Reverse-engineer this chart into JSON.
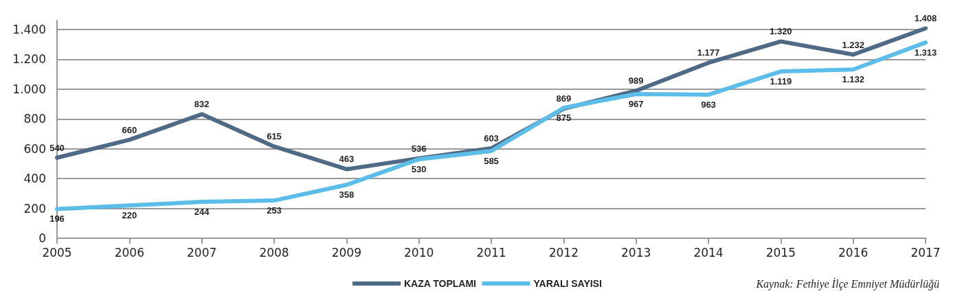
{
  "chart_data": {
    "type": "line",
    "categories": [
      "2005",
      "2006",
      "2007",
      "2008",
      "2009",
      "2010",
      "2011",
      "2012",
      "2013",
      "2014",
      "2015",
      "2016",
      "2017"
    ],
    "series": [
      {
        "name": "KAZA TOPLAMI",
        "color": "#4f6a84",
        "values": [
          540,
          660,
          832,
          615,
          463,
          536,
          603,
          869,
          989,
          1177,
          1320,
          1232,
          1408
        ],
        "value_labels": [
          "540",
          "660",
          "832",
          "615",
          "463",
          "536",
          "603",
          "869",
          "989",
          "1.177",
          "1.320",
          "1.232",
          "1.408"
        ]
      },
      {
        "name": "YARALI SAYISI",
        "color": "#5bbde8",
        "values": [
          196,
          220,
          244,
          253,
          358,
          530,
          585,
          875,
          967,
          963,
          1119,
          1132,
          1313
        ],
        "value_labels": [
          "196",
          "220",
          "244",
          "253",
          "358",
          "530",
          "585",
          "875",
          "967",
          "963",
          "1.119",
          "1.132",
          "1.313"
        ]
      }
    ],
    "ylim": [
      0,
      1460
    ],
    "yticks": [
      0,
      200,
      400,
      600,
      800,
      {
        "value": 1000,
        "label": "1.000"
      },
      {
        "value": 1200,
        "label": "1.200"
      },
      {
        "value": 1400,
        "label": "1.400"
      }
    ],
    "grid": "y",
    "legend": "bottom",
    "marker": "none",
    "line_style": "solid",
    "annotations": [
      "Kaynak: Fethiye İlçe Emniyet Müdürlüğü"
    ]
  }
}
